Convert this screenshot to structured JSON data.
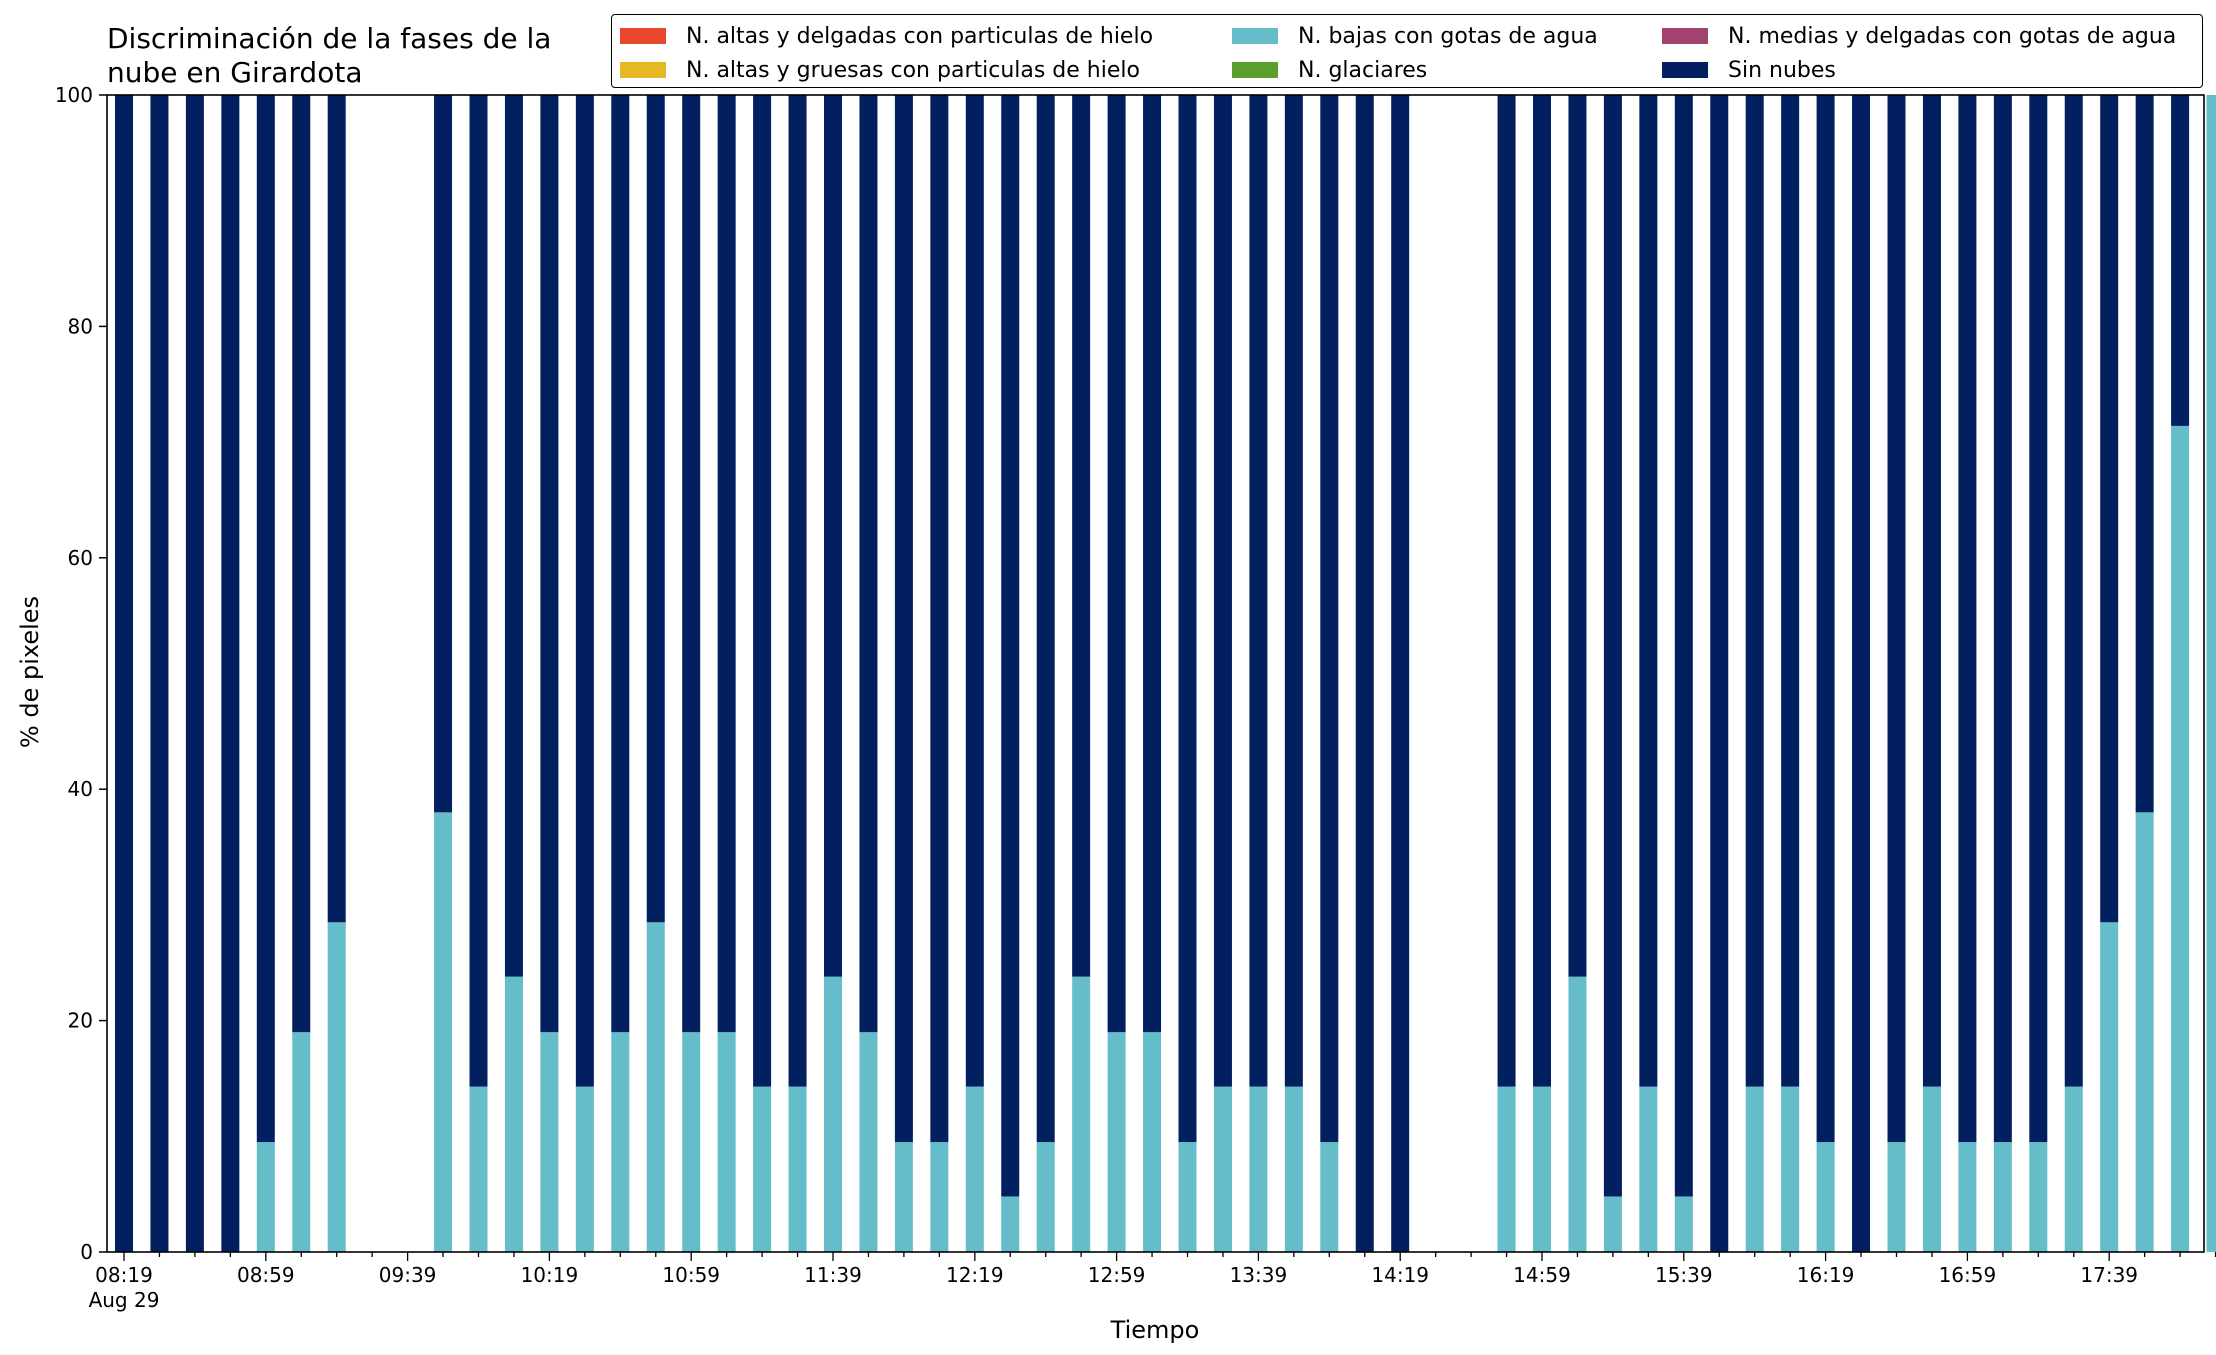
{
  "chart_data": {
    "type": "bar",
    "stacked": true,
    "title": "Discriminación de la fases de la nube en Girardota",
    "title_lines": [
      "Discriminación de la fases de la",
      "nube en Girardota"
    ],
    "xlabel": "Tiempo",
    "ylabel": "% de pixeles",
    "ylim": [
      0,
      100
    ],
    "yticks": [
      0,
      20,
      40,
      60,
      80,
      100
    ],
    "xtick_labels": [
      "08:19",
      "08:59",
      "09:39",
      "10:19",
      "10:59",
      "11:39",
      "12:19",
      "12:59",
      "13:39",
      "14:19",
      "14:59",
      "15:39",
      "16:19",
      "16:59",
      "17:39"
    ],
    "xtick_sublabel": "Aug 29",
    "start_time": "08:19",
    "interval_minutes": 10,
    "legend_position": "top-right",
    "grid": false,
    "legend": [
      {
        "name": "N. altas y delgadas con particulas de hielo",
        "color": "#e8472b"
      },
      {
        "name": "N. altas y gruesas con particulas de hielo",
        "color": "#e4b923"
      },
      {
        "name": "N. bajas con gotas de agua",
        "color": "#64bdc9"
      },
      {
        "name": "N. glaciares",
        "color": "#5b9f2b"
      },
      {
        "name": "N. medias y delgadas con gotas de agua",
        "color": "#a2426f"
      },
      {
        "name": "Sin nubes",
        "color": "#021f5f"
      }
    ],
    "series": [
      {
        "name": "N. bajas con gotas de agua",
        "color": "#64bdc9",
        "values": [
          0,
          0,
          0,
          0,
          9.5,
          19,
          28.5,
          null,
          null,
          38,
          14.3,
          23.8,
          19,
          14.3,
          19,
          28.5,
          19,
          19,
          14.3,
          14.3,
          23.8,
          19,
          9.5,
          9.5,
          14.3,
          4.8,
          9.5,
          23.8,
          19,
          19,
          9.5,
          14.3,
          14.3,
          14.3,
          9.5,
          0,
          0,
          null,
          null,
          14.3,
          14.3,
          23.8,
          4.8,
          14.3,
          4.8,
          0,
          14.3,
          14.3,
          9.5,
          0,
          9.5,
          14.3,
          9.5,
          9.5,
          9.5,
          14.3,
          28.5,
          38,
          71.4,
          100
        ]
      },
      {
        "name": "Sin nubes",
        "color": "#021f5f",
        "values": [
          100,
          100,
          100,
          100,
          90.5,
          81,
          71.5,
          null,
          null,
          62,
          85.7,
          76.2,
          81,
          85.7,
          81,
          71.5,
          81,
          81,
          85.7,
          85.7,
          76.2,
          81,
          90.5,
          90.5,
          85.7,
          95.2,
          90.5,
          76.2,
          81,
          81,
          90.5,
          85.7,
          85.7,
          85.7,
          90.5,
          100,
          100,
          null,
          null,
          85.7,
          85.7,
          76.2,
          95.2,
          85.7,
          95.2,
          100,
          85.7,
          85.7,
          90.5,
          100,
          90.5,
          85.7,
          90.5,
          90.5,
          90.5,
          85.7,
          71.5,
          62,
          28.6,
          0
        ]
      }
    ]
  }
}
